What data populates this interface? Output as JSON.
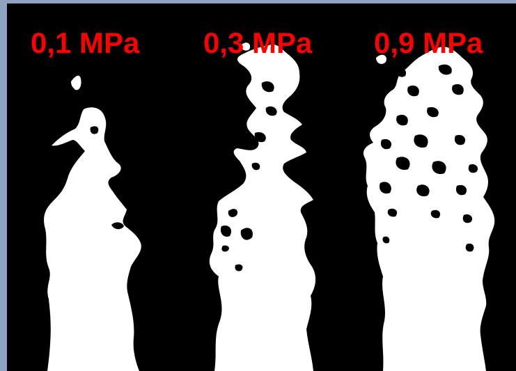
{
  "colors": {
    "border": "#8fa2c2",
    "background": "#000000",
    "plume": "#ffffff",
    "label": "#ff0000"
  },
  "labels": [
    {
      "text": "0,1 MPa"
    },
    {
      "text": "0,3 MPa"
    },
    {
      "text": "0,9 MPa"
    }
  ]
}
